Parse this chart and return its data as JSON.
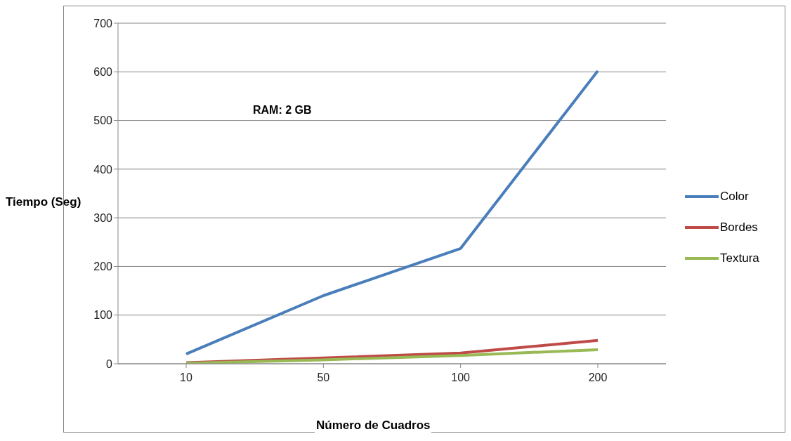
{
  "chart_data": {
    "type": "line",
    "xlabel": "Número de Cuadros",
    "ylabel": "Tiempo (Seg)",
    "categories": [
      "10",
      "50",
      "100",
      "200"
    ],
    "series": [
      {
        "name": "Color",
        "color": "#4a7ebb",
        "values": [
          20,
          140,
          237,
          602
        ]
      },
      {
        "name": "Bordes",
        "color": "#be4b48",
        "values": [
          2,
          12,
          22,
          48
        ]
      },
      {
        "name": "Textura",
        "color": "#98b954",
        "values": [
          1,
          8,
          17,
          29
        ]
      }
    ],
    "ylim": [
      0,
      700
    ],
    "yticks": [
      0,
      100,
      200,
      300,
      400,
      500,
      600,
      700
    ],
    "grid": "y",
    "legend": "right",
    "marker": "none",
    "line_style": "solid",
    "annotations": [
      "RAM: 2 GB"
    ]
  }
}
